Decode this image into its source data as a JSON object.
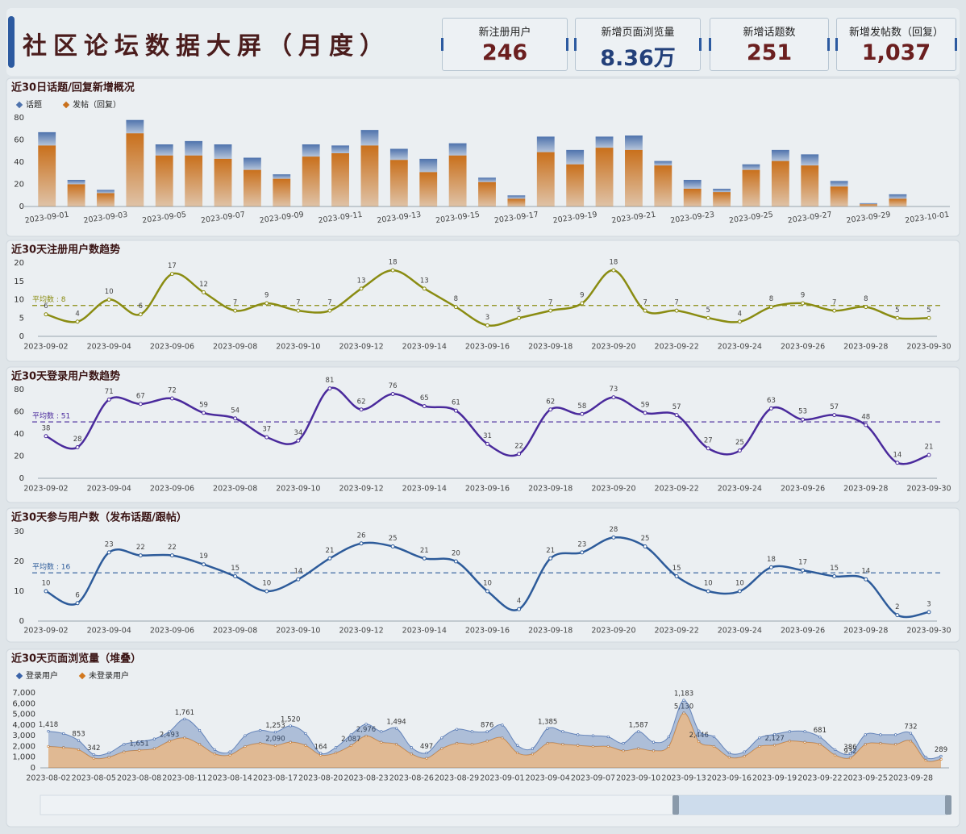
{
  "title": "社区论坛数据大屏（月度）",
  "kpis": [
    {
      "label": "新注册用户",
      "value": "246"
    },
    {
      "label": "新增页面浏览量",
      "value": "8.36万"
    },
    {
      "label": "新增话题数",
      "value": "251"
    },
    {
      "label": "新增发帖数（回复）",
      "value": "1,037"
    }
  ],
  "chart_data": [
    {
      "type": "stacked_bar",
      "title": "近30日话题/回复新增概况",
      "legend": "top-left",
      "grid": false,
      "categories": [
        "2023-09-01",
        null,
        "2023-09-03",
        null,
        "2023-09-05",
        null,
        "2023-09-07",
        null,
        "2023-09-09",
        null,
        "2023-09-11",
        null,
        "2023-09-13",
        null,
        "2023-09-15",
        null,
        "2023-09-17",
        null,
        "2023-09-19",
        null,
        "2023-09-21",
        null,
        "2023-09-23",
        null,
        "2023-09-25",
        null,
        "2023-09-27",
        null,
        "2023-09-29",
        null,
        "2023-10-01"
      ],
      "series": [
        {
          "name": "话题",
          "color": "#4f73ad",
          "values": [
            12,
            4,
            3,
            12,
            10,
            13,
            13,
            11,
            4,
            11,
            7,
            14,
            10,
            12,
            11,
            4,
            3,
            14,
            13,
            10,
            13,
            4,
            8,
            3,
            5,
            10,
            10,
            5,
            1,
            4,
            null
          ]
        },
        {
          "name": "发帖（回复）",
          "color": "#c9701c",
          "values": [
            55,
            20,
            12,
            66,
            46,
            46,
            43,
            33,
            25,
            45,
            48,
            55,
            42,
            31,
            46,
            22,
            7,
            49,
            38,
            53,
            51,
            37,
            16,
            13,
            33,
            41,
            37,
            18,
            2,
            7,
            null
          ]
        }
      ],
      "ylim": [
        0,
        80
      ],
      "yticks": [
        0,
        20,
        40,
        60,
        80
      ]
    },
    {
      "type": "line",
      "title": "近30天注册用户数趋势",
      "color": "#8a8c12",
      "grid": false,
      "categories": [
        "2023-09-02",
        null,
        "2023-09-04",
        null,
        "2023-09-06",
        null,
        "2023-09-08",
        null,
        "2023-09-10",
        null,
        "2023-09-12",
        null,
        "2023-09-14",
        null,
        "2023-09-16",
        null,
        "2023-09-18",
        null,
        "2023-09-20",
        null,
        "2023-09-22",
        null,
        "2023-09-24",
        null,
        "2023-09-26",
        null,
        "2023-09-28",
        null,
        "2023-09-30"
      ],
      "values": [
        6,
        4,
        10,
        6,
        17,
        12,
        7,
        9,
        7,
        7,
        13,
        18,
        13,
        8,
        3,
        5,
        7,
        9,
        18,
        7,
        7,
        5,
        4,
        8,
        9,
        7,
        8,
        5,
        5
      ],
      "mark_line": {
        "value": 8.41,
        "label": "平均数 : 8"
      },
      "ylim": [
        0,
        20
      ],
      "yticks": [
        0,
        5,
        10,
        15,
        20
      ]
    },
    {
      "type": "line",
      "title": "近30天登录用户数趋势",
      "color": "#4a2a9c",
      "grid": false,
      "categories": [
        "2023-09-02",
        null,
        "2023-09-04",
        null,
        "2023-09-06",
        null,
        "2023-09-08",
        null,
        "2023-09-10",
        null,
        "2023-09-12",
        null,
        "2023-09-14",
        null,
        "2023-09-16",
        null,
        "2023-09-18",
        null,
        "2023-09-20",
        null,
        "2023-09-22",
        null,
        "2023-09-24",
        null,
        "2023-09-26",
        null,
        "2023-09-28",
        null,
        "2023-09-30"
      ],
      "values": [
        38,
        28,
        71,
        67,
        72,
        59,
        54,
        37,
        34,
        81,
        62,
        76,
        65,
        61,
        31,
        22,
        62,
        58,
        73,
        59,
        57,
        27,
        25,
        63,
        53,
        57,
        48,
        14,
        21
      ],
      "mark_line": {
        "value": 50.86,
        "label": "平均数 : 51"
      },
      "ylim": [
        0,
        80
      ],
      "yticks": [
        0,
        20,
        40,
        60,
        80
      ]
    },
    {
      "type": "line",
      "title": "近30天参与用户数（发布话题/跟帖）",
      "color": "#2d5b9a",
      "grid": false,
      "categories": [
        "2023-09-02",
        null,
        "2023-09-04",
        null,
        "2023-09-06",
        null,
        "2023-09-08",
        null,
        "2023-09-10",
        null,
        "2023-09-12",
        null,
        "2023-09-14",
        null,
        "2023-09-16",
        null,
        "2023-09-18",
        null,
        "2023-09-20",
        null,
        "2023-09-22",
        null,
        "2023-09-24",
        null,
        "2023-09-26",
        null,
        "2023-09-28",
        null,
        "2023-09-30"
      ],
      "values": [
        10,
        6,
        23,
        22,
        22,
        19,
        15,
        10,
        14,
        21,
        26,
        25,
        21,
        20,
        10,
        4,
        21,
        23,
        28,
        25,
        15,
        10,
        10,
        18,
        17,
        15,
        14,
        2,
        3
      ],
      "mark_line": {
        "value": 16.17,
        "label": "平均数 : 16"
      },
      "ylim": [
        0,
        30
      ],
      "yticks": [
        0,
        10,
        20,
        30
      ]
    },
    {
      "type": "stacked_area",
      "title": "近30天页面浏览量（堆叠）",
      "legend": "top-left",
      "grid": false,
      "categories": [
        "2023-08-02",
        null,
        null,
        "2023-08-05",
        null,
        null,
        "2023-08-08",
        null,
        null,
        "2023-08-11",
        null,
        null,
        "2023-08-14",
        null,
        null,
        "2023-08-17",
        null,
        null,
        "2023-08-20",
        null,
        null,
        "2023-08-23",
        null,
        null,
        "2023-08-26",
        null,
        null,
        "2023-08-29",
        null,
        null,
        "2023-09-01",
        null,
        null,
        "2023-09-04",
        null,
        null,
        "2023-09-07",
        null,
        null,
        "2023-09-10",
        null,
        null,
        "2023-09-13",
        null,
        null,
        "2023-09-16",
        null,
        null,
        "2023-09-19",
        null,
        null,
        "2023-09-22",
        null,
        null,
        "2023-09-25",
        null,
        null,
        "2023-09-28",
        null,
        null
      ],
      "series": [
        {
          "name": "登录用户",
          "color": "#3a63a8",
          "values": [
            1418,
            1300,
            853,
            342,
            400,
            700,
            800,
            900,
            900,
            1761,
            1300,
            400,
            300,
            1000,
            1200,
            1253,
            1520,
            1100,
            164,
            500,
            1000,
            1100,
            1000,
            1494,
            600,
            497,
            1000,
            1300,
            1200,
            876,
            1200,
            700,
            500,
            1385,
            1200,
            1000,
            1000,
            900,
            700,
            1587,
            800,
            900,
            1183,
            1000,
            900,
            400,
            400,
            800,
            1000,
            900,
            1000,
            681,
            500,
            386,
            900,
            800,
            900,
            732,
            300,
            289
          ],
          "value_labels": [
            "1,418",
            null,
            "853",
            "342",
            null,
            null,
            null,
            null,
            null,
            "1,761",
            null,
            null,
            null,
            null,
            null,
            "1,253",
            "1,520",
            null,
            "164",
            null,
            null,
            null,
            null,
            "1,494",
            null,
            "497",
            null,
            null,
            null,
            "876",
            null,
            null,
            null,
            "1,385",
            null,
            null,
            null,
            null,
            null,
            "1,587",
            null,
            null,
            "1,183",
            null,
            null,
            null,
            null,
            null,
            null,
            null,
            null,
            "681",
            null,
            "386",
            null,
            null,
            null,
            "732",
            null,
            "289"
          ]
        },
        {
          "name": "未登录用户",
          "color": "#d2781e",
          "values": [
            2000,
            1900,
            1700,
            900,
            1000,
            1500,
            1651,
            1800,
            2493,
            2800,
            2200,
            1300,
            1200,
            2000,
            2300,
            2090,
            2400,
            2100,
            1200,
            1400,
            2087,
            2976,
            2400,
            2200,
            1300,
            900,
            1800,
            2300,
            2200,
            2500,
            2800,
            1400,
            1300,
            2300,
            2200,
            2100,
            2000,
            2000,
            1600,
            1800,
            1600,
            2000,
            5130,
            2446,
            2000,
            1000,
            1100,
            2000,
            2127,
            2500,
            2400,
            2200,
            1200,
            932,
            2200,
            2300,
            2200,
            2500,
            700,
            800
          ],
          "value_labels": [
            null,
            null,
            null,
            null,
            null,
            null,
            "1,651",
            null,
            "2,493",
            null,
            null,
            null,
            null,
            null,
            null,
            "2,090",
            null,
            null,
            null,
            null,
            "2,087",
            "2,976",
            null,
            null,
            null,
            null,
            null,
            null,
            null,
            null,
            null,
            null,
            null,
            null,
            null,
            null,
            null,
            null,
            null,
            null,
            null,
            null,
            "5,130",
            "2,446",
            null,
            null,
            null,
            null,
            "2,127",
            null,
            null,
            null,
            null,
            "932",
            null,
            null,
            null,
            null,
            null,
            null
          ]
        }
      ],
      "ylim": [
        0,
        7000
      ],
      "yticks": [
        0,
        {
          "value": 1000,
          "label": "1,000"
        },
        {
          "value": 2000,
          "label": "2,000"
        },
        {
          "value": 3000,
          "label": "3,000"
        },
        {
          "value": 4000,
          "label": "4,000"
        },
        {
          "value": 5000,
          "label": "5,000"
        },
        {
          "value": 6000,
          "label": "6,000"
        },
        {
          "value": 7000,
          "label": "7,000"
        }
      ]
    }
  ]
}
